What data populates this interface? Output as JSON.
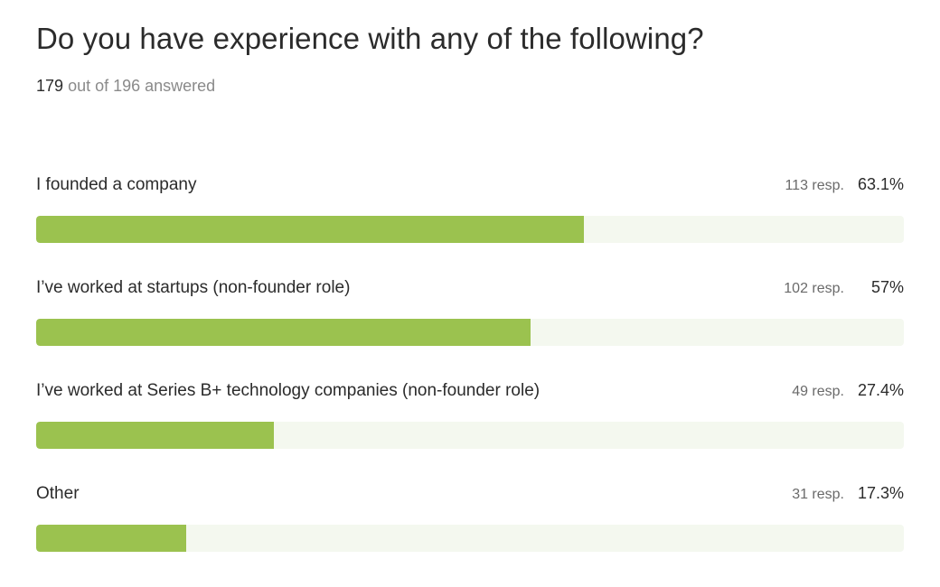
{
  "question": {
    "title": "Do you have experience with any of the following?",
    "answered_count": "179",
    "answered_suffix": "out of 196 answered"
  },
  "colors": {
    "bar_fill": "#9bc24f",
    "bar_track": "#f4f8ef"
  },
  "options": [
    {
      "label": "I founded a company",
      "responses": "113 resp.",
      "percent_label": "63.1%",
      "percent": 63.1
    },
    {
      "label": "I’ve worked at startups (non-founder role)",
      "responses": "102 resp.",
      "percent_label": "57%",
      "percent": 57
    },
    {
      "label": "I’ve worked at Series B+ technology companies (non-founder role)",
      "responses": "49 resp.",
      "percent_label": "27.4%",
      "percent": 27.4
    },
    {
      "label": "Other",
      "responses": "31 resp.",
      "percent_label": "17.3%",
      "percent": 17.3
    }
  ]
}
